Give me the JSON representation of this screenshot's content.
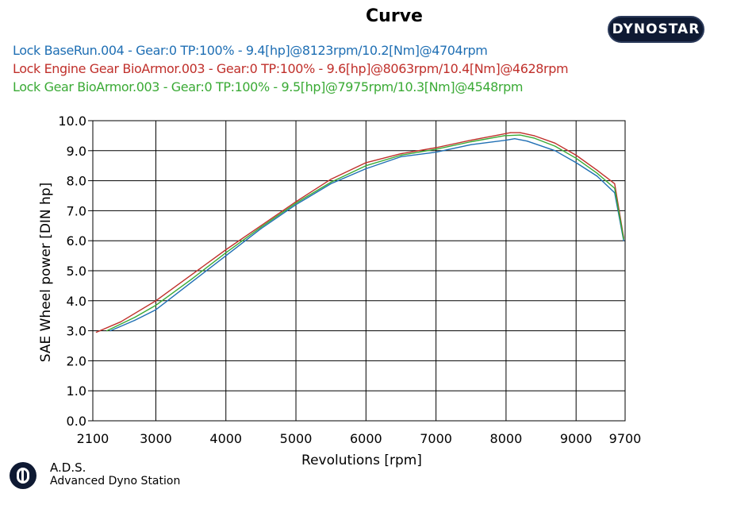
{
  "header": {
    "title": "Curve",
    "brand_logo_text": "DYNOSTAR"
  },
  "legend": [
    {
      "text": "Lock BaseRun.004 - Gear:0 TP:100%  - 9.4[hp]@8123rpm/10.2[Nm]@4704rpm",
      "color": "#1f6fb4"
    },
    {
      "text": "Lock Engine Gear BioArmor.003 - Gear:0 TP:100%  - 9.6[hp]@8063rpm/10.4[Nm]@4628rpm",
      "color": "#c0302b"
    },
    {
      "text": "Lock Gear BioArmor.003 - Gear:0 TP:100%  - 9.5[hp]@7975rpm/10.3[Nm]@4548rpm",
      "color": "#3aaa35"
    }
  ],
  "footer": {
    "name": "A.D.S.",
    "subtitle": "Advanced Dyno Station"
  },
  "chart_data": {
    "type": "line",
    "title": "Curve",
    "xlabel": "Revolutions [rpm]",
    "ylabel": "SAE Wheel power [DIN hp]",
    "xlim": [
      2100,
      9700
    ],
    "ylim": [
      0,
      10
    ],
    "xticks": [
      2100,
      3000,
      4000,
      5000,
      6000,
      7000,
      8000,
      9000,
      9700
    ],
    "yticks": [
      0,
      1,
      2,
      3,
      4,
      5,
      6,
      7,
      8,
      9,
      10
    ],
    "ytick_labels": [
      "0.0",
      "1.0",
      "2.0",
      "3.0",
      "4.0",
      "5.0",
      "6.0",
      "7.0",
      "8.0",
      "9.0",
      "10.0"
    ],
    "grid": true,
    "series": [
      {
        "name": "Lock BaseRun.004",
        "color": "#1f6fb4",
        "x": [
          2350,
          2700,
          3000,
          3500,
          4000,
          4500,
          5000,
          5500,
          6000,
          6500,
          7000,
          7500,
          8000,
          8123,
          8300,
          8700,
          9000,
          9300,
          9550,
          9680
        ],
        "y": [
          3.0,
          3.35,
          3.7,
          4.6,
          5.5,
          6.4,
          7.2,
          7.9,
          8.4,
          8.8,
          8.95,
          9.2,
          9.35,
          9.4,
          9.32,
          9.0,
          8.6,
          8.15,
          7.6,
          6.0
        ]
      },
      {
        "name": "Lock Engine Gear BioArmor.003",
        "color": "#c0302b",
        "x": [
          2150,
          2500,
          3000,
          3500,
          4000,
          4500,
          5000,
          5500,
          6000,
          6500,
          7000,
          7500,
          8063,
          8200,
          8400,
          8700,
          9000,
          9300,
          9550,
          9680
        ],
        "y": [
          2.95,
          3.3,
          4.0,
          4.85,
          5.7,
          6.5,
          7.3,
          8.05,
          8.6,
          8.9,
          9.1,
          9.35,
          9.6,
          9.6,
          9.5,
          9.25,
          8.85,
          8.35,
          7.9,
          6.1
        ]
      },
      {
        "name": "Lock Gear BioArmor.003",
        "color": "#3aaa35",
        "x": [
          2300,
          2700,
          3000,
          3500,
          4000,
          4500,
          5000,
          5500,
          6000,
          6500,
          7000,
          7500,
          7975,
          8200,
          8400,
          8700,
          9000,
          9300,
          9550,
          9680
        ],
        "y": [
          3.0,
          3.45,
          3.85,
          4.7,
          5.6,
          6.45,
          7.25,
          7.95,
          8.5,
          8.85,
          9.05,
          9.3,
          9.5,
          9.52,
          9.42,
          9.15,
          8.75,
          8.25,
          7.75,
          6.05
        ]
      }
    ]
  }
}
